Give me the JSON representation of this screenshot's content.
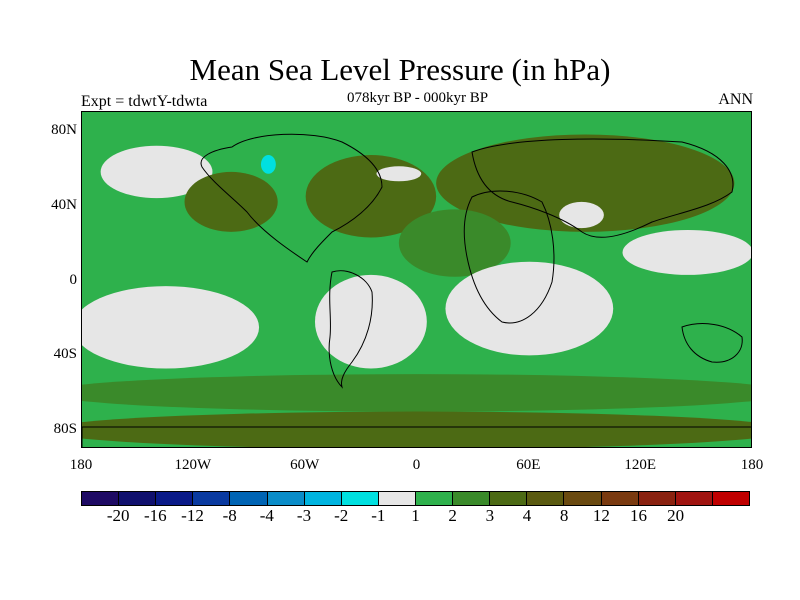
{
  "title": "Mean Sea Level Pressure (in hPa)",
  "subtitle": "078kyr BP - 000kyr BP",
  "left_label": "Expt = tdwtY-tdwta",
  "right_label": "ANN",
  "map": {
    "lat_labels": [
      "80N",
      "40N",
      "0",
      "40S",
      "80S"
    ],
    "lat_values": [
      80,
      40,
      0,
      -40,
      -80
    ],
    "lon_labels": [
      "180",
      "120W",
      "60W",
      "0",
      "60E",
      "120E",
      "180"
    ],
    "lon_values": [
      -180,
      -120,
      -60,
      0,
      60,
      120,
      180
    ],
    "regions": [
      {
        "class": "2",
        "label": "global-green-background",
        "cx": 0,
        "cy": 0,
        "rx": 360,
        "ry": 180
      },
      {
        "class": "-1",
        "label": "north-pacific-low-anomaly",
        "cx": -140,
        "cy": 58,
        "rx": 30,
        "ry": 14
      },
      {
        "class": "-2",
        "label": "hudson-bay-anomaly",
        "cx": -80,
        "cy": 62,
        "rx": 4,
        "ry": 5
      },
      {
        "class": "4",
        "label": "north-america-high",
        "cx": -100,
        "cy": 42,
        "rx": 25,
        "ry": 16
      },
      {
        "class": "4",
        "label": "north-atlantic-high",
        "cx": -25,
        "cy": 45,
        "rx": 35,
        "ry": 22
      },
      {
        "class": "-1",
        "label": "north-atlantic-low-anomaly",
        "cx": -10,
        "cy": 57,
        "rx": 12,
        "ry": 4
      },
      {
        "class": "4",
        "label": "eurasia-high",
        "cx": 90,
        "cy": 52,
        "rx": 80,
        "ry": 26
      },
      {
        "class": "-1",
        "label": "tibet-anomaly",
        "cx": 88,
        "cy": 35,
        "rx": 12,
        "ry": 7
      },
      {
        "class": "3",
        "label": "africa-positive",
        "cx": 20,
        "cy": 20,
        "rx": 30,
        "ry": 18
      },
      {
        "class": "-1",
        "label": "southeast-pacific-anomaly",
        "cx": -135,
        "cy": -25,
        "rx": 50,
        "ry": 22
      },
      {
        "class": "-1",
        "label": "south-atlantic-anomaly",
        "cx": -25,
        "cy": -22,
        "rx": 30,
        "ry": 25
      },
      {
        "class": "-1",
        "label": "indian-ocean-anomaly",
        "cx": 60,
        "cy": -15,
        "rx": 45,
        "ry": 25
      },
      {
        "class": "-1",
        "label": "west-pacific-anomaly",
        "cx": 145,
        "cy": 15,
        "rx": 35,
        "ry": 12
      },
      {
        "class": "3",
        "label": "southern-ocean-band",
        "cx": 0,
        "cy": -60,
        "rx": 200,
        "ry": 10
      },
      {
        "class": "4",
        "label": "antarctica-high",
        "cx": 0,
        "cy": -80,
        "rx": 200,
        "ry": 10
      }
    ]
  },
  "colorbar": {
    "colors": [
      "#1e0a64",
      "#10106e",
      "#0a1a88",
      "#0a3aa0",
      "#0064b4",
      "#0a8cc8",
      "#00b4e0",
      "#00e0e0",
      "#e6e6e6",
      "#2eb14c",
      "#3a8a2a",
      "#4c6a14",
      "#5a5a10",
      "#6a4a10",
      "#7a3a10",
      "#8a2210",
      "#a01410",
      "#c00000"
    ],
    "labels": [
      "-20",
      "-16",
      "-12",
      "-8",
      "-4",
      "-3",
      "-2",
      "-1",
      "1",
      "2",
      "3",
      "4",
      "8",
      "12",
      "16",
      "20"
    ]
  }
}
